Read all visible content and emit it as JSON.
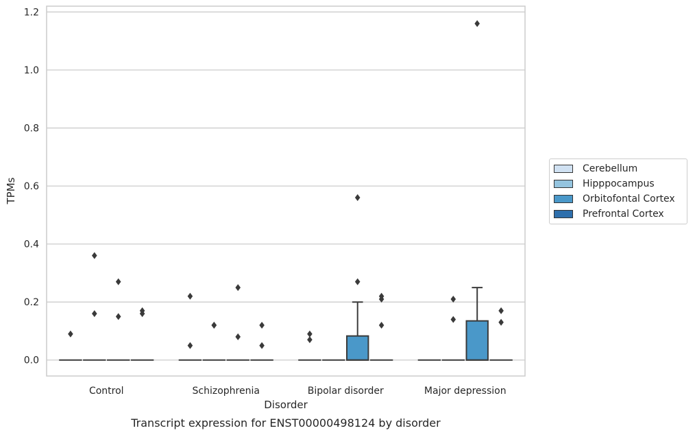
{
  "chart_data": {
    "type": "box",
    "categories": [
      "Control",
      "Schizophrenia",
      "Bipolar disorder",
      "Major depression"
    ],
    "xlabel": "Disorder",
    "ylabel": "TPMs",
    "caption": "Transcript expression for ENST00000498124 by disorder",
    "ylim": [
      -0.055,
      1.22
    ],
    "yticks": [
      0.0,
      0.2,
      0.4,
      0.6,
      0.8,
      1.0,
      1.2
    ],
    "ytick_labels": [
      "0.0",
      "0.2",
      "0.4",
      "0.6",
      "0.8",
      "1.0",
      "1.2"
    ],
    "grid": true,
    "legend_position": "right",
    "hue_levels": [
      "Cerebellum",
      "Hipppocampus",
      "Orbitofontal Cortex",
      "Prefrontal Cortex"
    ],
    "colors": [
      "#d0e1f2",
      "#94c4df",
      "#4a98c9",
      "#2e6fac"
    ],
    "boxes": [
      {
        "category": "Control",
        "group": "Cerebellum",
        "q1": 0,
        "median": 0,
        "q3": 0,
        "whisker_low": 0,
        "whisker_high": 0,
        "outliers": [
          0.09
        ]
      },
      {
        "category": "Control",
        "group": "Hipppocampus",
        "q1": 0,
        "median": 0,
        "q3": 0,
        "whisker_low": 0,
        "whisker_high": 0,
        "outliers": [
          0.36,
          0.16
        ]
      },
      {
        "category": "Control",
        "group": "Orbitofontal Cortex",
        "q1": 0,
        "median": 0,
        "q3": 0,
        "whisker_low": 0,
        "whisker_high": 0,
        "outliers": [
          0.27,
          0.15
        ]
      },
      {
        "category": "Control",
        "group": "Prefrontal Cortex",
        "q1": 0,
        "median": 0,
        "q3": 0,
        "whisker_low": 0,
        "whisker_high": 0,
        "outliers": [
          0.17,
          0.16
        ]
      },
      {
        "category": "Schizophrenia",
        "group": "Cerebellum",
        "q1": 0,
        "median": 0,
        "q3": 0,
        "whisker_low": 0,
        "whisker_high": 0,
        "outliers": [
          0.22,
          0.05
        ]
      },
      {
        "category": "Schizophrenia",
        "group": "Hipppocampus",
        "q1": 0,
        "median": 0,
        "q3": 0,
        "whisker_low": 0,
        "whisker_high": 0,
        "outliers": [
          0.12,
          0.12
        ]
      },
      {
        "category": "Schizophrenia",
        "group": "Orbitofontal Cortex",
        "q1": 0,
        "median": 0,
        "q3": 0,
        "whisker_low": 0,
        "whisker_high": 0,
        "outliers": [
          0.25,
          0.08
        ]
      },
      {
        "category": "Schizophrenia",
        "group": "Prefrontal Cortex",
        "q1": 0,
        "median": 0,
        "q3": 0,
        "whisker_low": 0,
        "whisker_high": 0,
        "outliers": [
          0.12,
          0.05
        ]
      },
      {
        "category": "Bipolar disorder",
        "group": "Cerebellum",
        "q1": 0,
        "median": 0,
        "q3": 0,
        "whisker_low": 0,
        "whisker_high": 0,
        "outliers": [
          0.09,
          0.07
        ]
      },
      {
        "category": "Bipolar disorder",
        "group": "Hipppocampus",
        "q1": 0,
        "median": 0,
        "q3": 0,
        "whisker_low": 0,
        "whisker_high": 0,
        "outliers": []
      },
      {
        "category": "Bipolar disorder",
        "group": "Orbitofontal Cortex",
        "q1": 0,
        "median": 0,
        "q3": 0.083,
        "whisker_low": 0,
        "whisker_high": 0.2,
        "outliers": [
          0.56,
          0.27
        ]
      },
      {
        "category": "Bipolar disorder",
        "group": "Prefrontal Cortex",
        "q1": 0,
        "median": 0,
        "q3": 0,
        "whisker_low": 0,
        "whisker_high": 0,
        "outliers": [
          0.22,
          0.21,
          0.12
        ]
      },
      {
        "category": "Major depression",
        "group": "Cerebellum",
        "q1": 0,
        "median": 0,
        "q3": 0,
        "whisker_low": 0,
        "whisker_high": 0,
        "outliers": []
      },
      {
        "category": "Major depression",
        "group": "Hipppocampus",
        "q1": 0,
        "median": 0,
        "q3": 0,
        "whisker_low": 0,
        "whisker_high": 0,
        "outliers": [
          0.21,
          0.14
        ]
      },
      {
        "category": "Major depression",
        "group": "Orbitofontal Cortex",
        "q1": 0,
        "median": 0,
        "q3": 0.135,
        "whisker_low": 0,
        "whisker_high": 0.25,
        "outliers": [
          1.16
        ]
      },
      {
        "category": "Major depression",
        "group": "Prefrontal Cortex",
        "q1": 0,
        "median": 0,
        "q3": 0,
        "whisker_low": 0,
        "whisker_high": 0,
        "outliers": [
          0.17,
          0.13
        ]
      }
    ]
  }
}
